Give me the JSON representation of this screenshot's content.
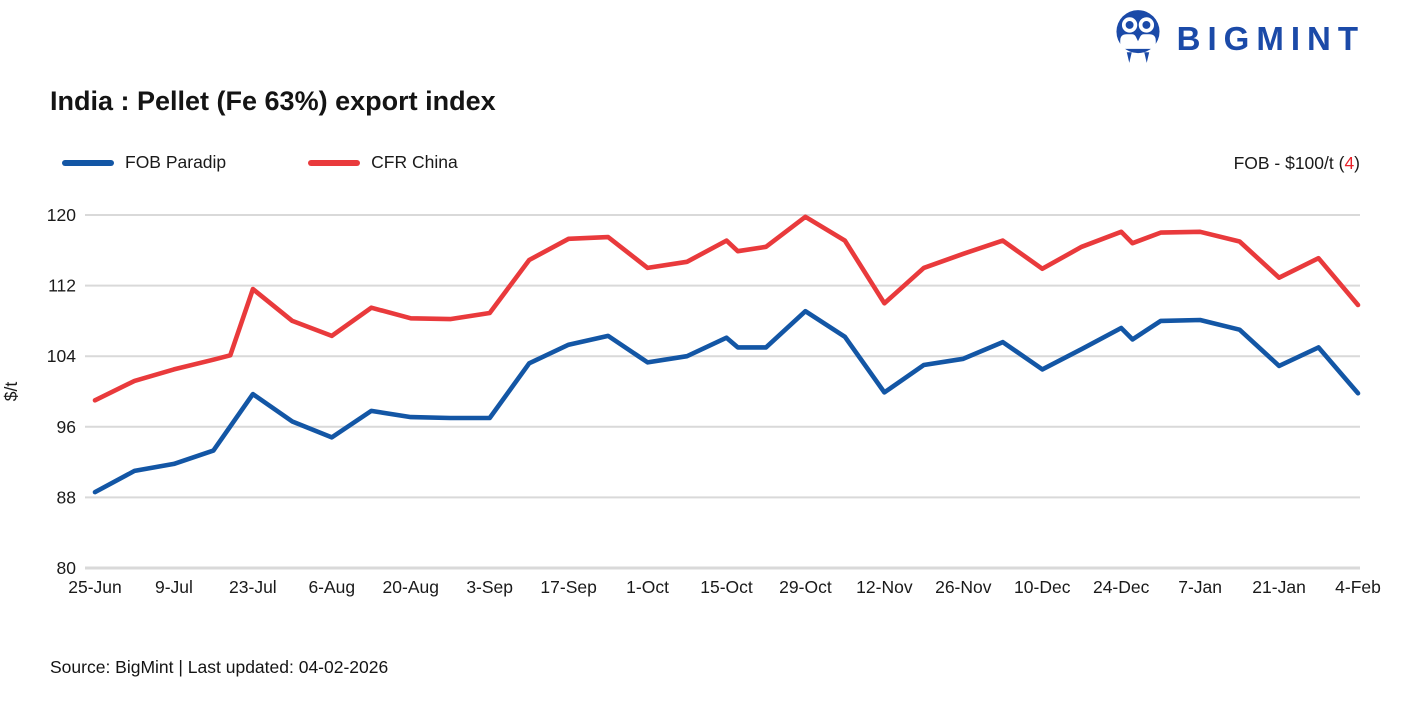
{
  "header": {
    "logo_text": "BIGMINT",
    "brand_color": "#1b4aa8"
  },
  "annotation": {
    "label": "FOB - $100/t (",
    "value": "4",
    "close": ")",
    "value_color": "#e8222a"
  },
  "chart_data": {
    "type": "line",
    "title": "India : Pellet (Fe 63%) export index",
    "xlabel": "",
    "ylabel": "$/t",
    "ylim": [
      80,
      120
    ],
    "yticks": [
      80,
      88,
      96,
      104,
      112,
      120
    ],
    "grid": "horizontal",
    "gridline_color": "#d9d9d9",
    "legend_position": "top-left",
    "x_unit": "days since 25-Jun (weekly index points)",
    "xlim": [
      0,
      224
    ],
    "xticks": [
      {
        "x": 0,
        "label": "25-Jun"
      },
      {
        "x": 14,
        "label": "9-Jul"
      },
      {
        "x": 28,
        "label": "23-Jul"
      },
      {
        "x": 42,
        "label": "6-Aug"
      },
      {
        "x": 56,
        "label": "20-Aug"
      },
      {
        "x": 70,
        "label": "3-Sep"
      },
      {
        "x": 84,
        "label": "17-Sep"
      },
      {
        "x": 98,
        "label": "1-Oct"
      },
      {
        "x": 112,
        "label": "15-Oct"
      },
      {
        "x": 126,
        "label": "29-Oct"
      },
      {
        "x": 140,
        "label": "12-Nov"
      },
      {
        "x": 154,
        "label": "26-Nov"
      },
      {
        "x": 168,
        "label": "10-Dec"
      },
      {
        "x": 182,
        "label": "24-Dec"
      },
      {
        "x": 196,
        "label": "7-Jan"
      },
      {
        "x": 210,
        "label": "21-Jan"
      },
      {
        "x": 224,
        "label": "4-Feb"
      }
    ],
    "series": [
      {
        "name": "FOB Paradip",
        "color": "#1356a5",
        "points": [
          [
            0,
            88.6
          ],
          [
            7,
            91.0
          ],
          [
            14,
            91.8
          ],
          [
            21,
            93.3
          ],
          [
            28,
            99.7
          ],
          [
            35,
            96.6
          ],
          [
            42,
            94.8
          ],
          [
            49,
            97.8
          ],
          [
            56,
            97.1
          ],
          [
            63,
            97.0
          ],
          [
            70,
            97.0
          ],
          [
            77,
            103.2
          ],
          [
            84,
            105.3
          ],
          [
            91,
            106.3
          ],
          [
            98,
            103.3
          ],
          [
            105,
            104.0
          ],
          [
            112,
            106.1
          ],
          [
            114,
            105.0
          ],
          [
            119,
            105.0
          ],
          [
            126,
            109.1
          ],
          [
            133,
            106.2
          ],
          [
            140,
            99.9
          ],
          [
            147,
            103.0
          ],
          [
            154,
            103.7
          ],
          [
            161,
            105.6
          ],
          [
            168,
            102.5
          ],
          [
            175,
            104.8
          ],
          [
            182,
            107.2
          ],
          [
            184,
            105.9
          ],
          [
            189,
            108.0
          ],
          [
            196,
            108.1
          ],
          [
            203,
            107.0
          ],
          [
            210,
            102.9
          ],
          [
            217,
            105.0
          ],
          [
            224,
            99.8
          ]
        ]
      },
      {
        "name": "CFR China",
        "color": "#e93a3c",
        "points": [
          [
            0,
            99.0
          ],
          [
            7,
            101.2
          ],
          [
            14,
            102.5
          ],
          [
            21,
            103.6
          ],
          [
            24,
            104.1
          ],
          [
            28,
            111.6
          ],
          [
            35,
            108.0
          ],
          [
            42,
            106.3
          ],
          [
            49,
            109.5
          ],
          [
            56,
            108.3
          ],
          [
            63,
            108.2
          ],
          [
            70,
            108.9
          ],
          [
            77,
            114.9
          ],
          [
            84,
            117.3
          ],
          [
            91,
            117.5
          ],
          [
            98,
            114.0
          ],
          [
            105,
            114.7
          ],
          [
            112,
            117.1
          ],
          [
            114,
            115.9
          ],
          [
            119,
            116.4
          ],
          [
            126,
            119.8
          ],
          [
            133,
            117.1
          ],
          [
            140,
            110.0
          ],
          [
            147,
            114.0
          ],
          [
            154,
            115.6
          ],
          [
            161,
            117.1
          ],
          [
            168,
            113.9
          ],
          [
            175,
            116.4
          ],
          [
            182,
            118.1
          ],
          [
            184,
            116.8
          ],
          [
            189,
            118.0
          ],
          [
            196,
            118.1
          ],
          [
            203,
            117.0
          ],
          [
            210,
            112.9
          ],
          [
            217,
            115.1
          ],
          [
            224,
            109.8
          ]
        ]
      }
    ]
  },
  "footer": {
    "source": "Source: BigMint | Last updated: 04-02-2026"
  }
}
